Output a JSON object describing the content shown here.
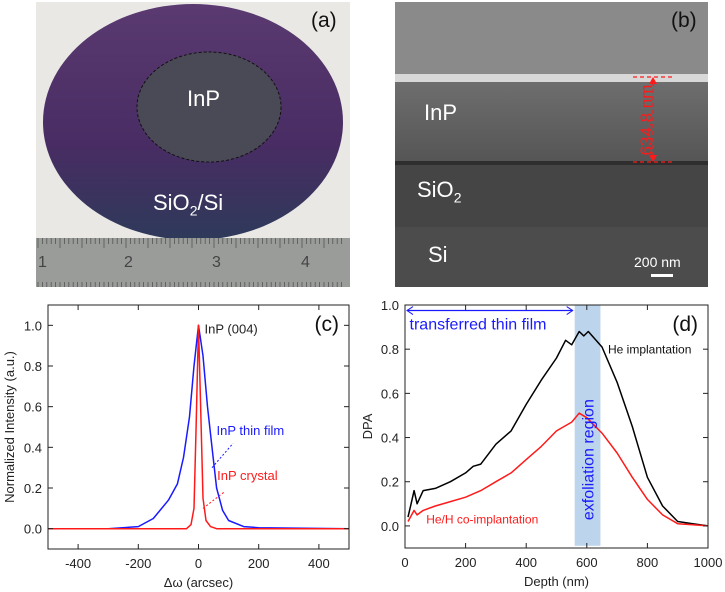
{
  "panel_a": {
    "label": "(a)",
    "inner_region_label": "InP",
    "outer_region_label": "SiO",
    "outer_region_sub": "2",
    "outer_region_suffix": "/Si",
    "ruler_marks": [
      "1",
      "2",
      "3",
      "4"
    ],
    "colors": {
      "wafer": "#4a2f63",
      "inner": "#4a4a56",
      "background": "#e9e8e4",
      "ruler": "#9a9c9a"
    }
  },
  "panel_b": {
    "label": "(b)",
    "layer_inp": "InP",
    "layer_sio2": "SiO",
    "layer_sio2_sub": "2",
    "layer_si": "Si",
    "thickness_annotation": "634.8 nm",
    "scale_bar": "200 nm",
    "colors": {
      "annotation": "#ff1a1a"
    }
  },
  "chart_data": [
    {
      "panel": "(c)",
      "type": "line",
      "xlabel": "Δω (arcsec)",
      "ylabel": "Normalized Intensity (a.u.)",
      "xlim": [
        -500,
        500
      ],
      "ylim": [
        -0.1,
        1.1
      ],
      "xticks": [
        -400,
        -200,
        0,
        200,
        400
      ],
      "yticks": [
        "0.0",
        "0.2",
        "0.4",
        "0.6",
        "0.8",
        "1.0"
      ],
      "grid": false,
      "annotations": [
        "InP (004)"
      ],
      "series": [
        {
          "name": "InP thin film",
          "color": "#1a1aff",
          "x": [
            -500,
            -300,
            -200,
            -150,
            -100,
            -70,
            -50,
            -30,
            -15,
            0,
            15,
            30,
            45,
            60,
            80,
            100,
            150,
            200,
            500
          ],
          "y": [
            0,
            0,
            0.01,
            0.05,
            0.14,
            0.22,
            0.35,
            0.55,
            0.8,
            1.0,
            0.85,
            0.6,
            0.4,
            0.2,
            0.09,
            0.04,
            0.01,
            0.005,
            0
          ]
        },
        {
          "name": "InP crystal",
          "color": "#ff1a1a",
          "x": [
            -500,
            -40,
            -25,
            -15,
            -8,
            0,
            8,
            15,
            25,
            40,
            60,
            500
          ],
          "y": [
            0,
            0,
            0.02,
            0.1,
            0.5,
            1.0,
            0.55,
            0.15,
            0.04,
            0.01,
            0,
            0
          ]
        }
      ]
    },
    {
      "panel": "(d)",
      "type": "line",
      "xlabel": "Depth (nm)",
      "ylabel": "DPA",
      "xlim": [
        0,
        1000
      ],
      "ylim": [
        -0.1,
        1.0
      ],
      "xticks": [
        0,
        200,
        400,
        600,
        800,
        1000
      ],
      "yticks": [
        "0.0",
        "0.2",
        "0.4",
        "0.6",
        "0.8",
        "1.0"
      ],
      "grid": false,
      "annotations": [
        "transferred thin film",
        "exfoliation region"
      ],
      "shaded_region": {
        "x": [
          560,
          645
        ],
        "label": "exfoliation region",
        "color": "#bcd5ec"
      },
      "arrow_span": {
        "x": [
          0,
          560
        ],
        "label": "transferred thin film",
        "color": "#1a1aff"
      },
      "series": [
        {
          "name": "He implantation",
          "color": "#000000",
          "x": [
            10,
            20,
            30,
            40,
            60,
            100,
            150,
            200,
            225,
            250,
            300,
            350,
            400,
            450,
            500,
            530,
            550,
            575,
            590,
            605,
            650,
            700,
            750,
            800,
            850,
            900,
            950,
            1000
          ],
          "y": [
            0.04,
            0.1,
            0.16,
            0.1,
            0.16,
            0.17,
            0.2,
            0.24,
            0.27,
            0.28,
            0.37,
            0.43,
            0.55,
            0.66,
            0.76,
            0.84,
            0.82,
            0.88,
            0.86,
            0.88,
            0.81,
            0.65,
            0.45,
            0.22,
            0.09,
            0.02,
            0.01,
            0.0
          ]
        },
        {
          "name": "He/H co-implantation",
          "color": "#ff1a1a",
          "x": [
            10,
            30,
            40,
            60,
            100,
            150,
            200,
            250,
            300,
            350,
            400,
            450,
            500,
            550,
            575,
            600,
            650,
            700,
            750,
            800,
            850,
            900,
            950,
            1000
          ],
          "y": [
            0.02,
            0.07,
            0.05,
            0.07,
            0.09,
            0.11,
            0.13,
            0.16,
            0.2,
            0.24,
            0.3,
            0.36,
            0.43,
            0.47,
            0.51,
            0.49,
            0.42,
            0.33,
            0.22,
            0.12,
            0.05,
            0.01,
            0.005,
            0
          ]
        }
      ]
    }
  ]
}
